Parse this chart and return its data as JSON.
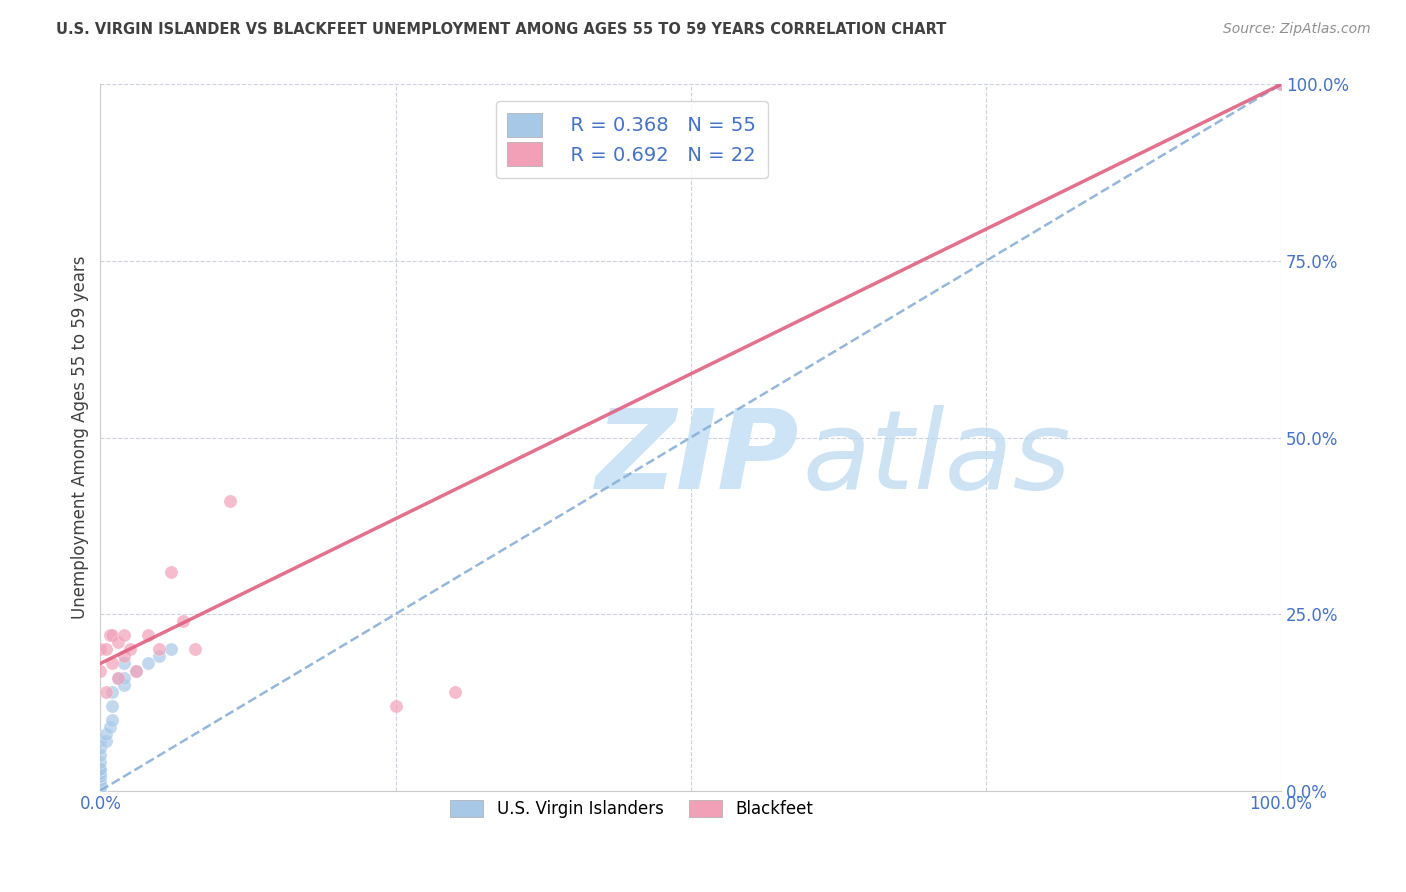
{
  "title": "U.S. VIRGIN ISLANDER VS BLACKFEET UNEMPLOYMENT AMONG AGES 55 TO 59 YEARS CORRELATION CHART",
  "source": "Source: ZipAtlas.com",
  "ylabel": "Unemployment Among Ages 55 to 59 years",
  "xlim": [
    0,
    1
  ],
  "ylim": [
    0,
    1
  ],
  "xticks": [
    0,
    0.25,
    0.5,
    0.75,
    1.0
  ],
  "yticks": [
    0,
    0.25,
    0.5,
    0.75,
    1.0
  ],
  "xticklabels": [
    "0.0%",
    "",
    "",
    "",
    "100.0%"
  ],
  "yticklabels": [
    "0.0%",
    "25.0%",
    "50.0%",
    "75.0%",
    "100.0%"
  ],
  "vi_R": 0.368,
  "vi_N": 55,
  "bf_R": 0.692,
  "bf_N": 22,
  "vi_color": "#a8c8e8",
  "bf_color": "#f2a0b8",
  "vi_line_color": "#8ab0d8",
  "bf_line_color": "#e06080",
  "title_color": "#404040",
  "tick_label_color": "#4472c4",
  "source_color": "#909090",
  "watermark_zip_color": "#cce4f5",
  "watermark_atlas_color": "#b8d8f0",
  "background_color": "#ffffff",
  "grid_color": "#c0c8d8",
  "legend_text_color": "#4472c4",
  "vi_line_x": [
    0.0,
    1.0
  ],
  "vi_line_y": [
    0.0,
    1.0
  ],
  "bf_line_x": [
    0.0,
    1.0
  ],
  "bf_line_y": [
    0.18,
    1.0
  ],
  "vi_scatter_x": [
    0.0,
    0.0,
    0.0,
    0.0,
    0.0,
    0.0,
    0.0,
    0.0,
    0.0,
    0.0,
    0.0,
    0.0,
    0.0,
    0.0,
    0.0,
    0.0,
    0.0,
    0.0,
    0.0,
    0.0,
    0.0,
    0.0,
    0.0,
    0.0,
    0.0,
    0.0,
    0.0,
    0.0,
    0.0,
    0.0,
    0.0,
    0.0,
    0.0,
    0.0,
    0.0,
    0.0,
    0.0,
    0.0,
    0.0,
    0.0,
    0.005,
    0.005,
    0.008,
    0.01,
    0.01,
    0.01,
    0.015,
    0.02,
    0.02,
    0.02,
    0.03,
    0.04,
    0.05,
    0.06,
    1.0
  ],
  "vi_scatter_y": [
    0.0,
    0.0,
    0.0,
    0.0,
    0.0,
    0.0,
    0.0,
    0.0,
    0.0,
    0.0,
    0.0,
    0.0,
    0.0,
    0.0,
    0.0,
    0.0,
    0.0,
    0.0,
    0.0,
    0.0,
    0.005,
    0.005,
    0.005,
    0.005,
    0.005,
    0.01,
    0.01,
    0.01,
    0.01,
    0.015,
    0.02,
    0.02,
    0.02,
    0.025,
    0.03,
    0.03,
    0.04,
    0.05,
    0.06,
    0.07,
    0.07,
    0.08,
    0.09,
    0.1,
    0.12,
    0.14,
    0.16,
    0.18,
    0.15,
    0.16,
    0.17,
    0.18,
    0.19,
    0.2,
    1.0
  ],
  "bf_scatter_x": [
    0.0,
    0.0,
    0.005,
    0.005,
    0.008,
    0.01,
    0.01,
    0.015,
    0.015,
    0.02,
    0.02,
    0.025,
    0.03,
    0.04,
    0.05,
    0.06,
    0.07,
    0.08,
    0.11,
    0.25,
    0.3,
    1.0
  ],
  "bf_scatter_y": [
    0.17,
    0.2,
    0.14,
    0.2,
    0.22,
    0.18,
    0.22,
    0.16,
    0.21,
    0.19,
    0.22,
    0.2,
    0.17,
    0.22,
    0.2,
    0.31,
    0.24,
    0.2,
    0.41,
    0.12,
    0.14,
    1.0
  ]
}
